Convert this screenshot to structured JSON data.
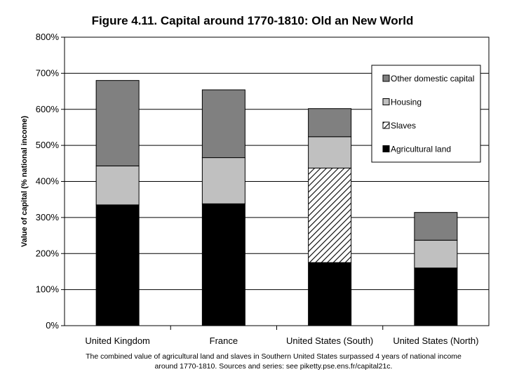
{
  "chart_data": {
    "type": "bar",
    "stacked": true,
    "title": "Figure 4.11. Capital around 1770-1810: Old an New World",
    "ylabel": "Value of capital (% national income)",
    "xlabel": "",
    "ylim": [
      0,
      800
    ],
    "yticks": [
      "0%",
      "100%",
      "200%",
      "300%",
      "400%",
      "500%",
      "600%",
      "700%",
      "800%"
    ],
    "y_tick_values": [
      0,
      100,
      200,
      300,
      400,
      500,
      600,
      700,
      800
    ],
    "categories": [
      "United Kingdom",
      "France",
      "United States (South)",
      "United States (North)"
    ],
    "series": [
      {
        "name": "Agricultural land",
        "values": [
          335,
          338,
          175,
          160
        ],
        "color": "#000000",
        "pattern": "solid"
      },
      {
        "name": "Slaves",
        "values": [
          0,
          0,
          262,
          0
        ],
        "color": "#ffffff",
        "pattern": "hatch"
      },
      {
        "name": "Housing",
        "values": [
          108,
          128,
          87,
          77
        ],
        "color": "#c0c0c0",
        "pattern": "solid"
      },
      {
        "name": "Other domestic capital",
        "values": [
          237,
          188,
          78,
          77
        ],
        "color": "#808080",
        "pattern": "solid"
      }
    ],
    "legend_order": [
      3,
      2,
      1,
      0
    ],
    "legend_position": "top-right",
    "grid": true
  },
  "footnote": "The combined value of agricultural land and slaves in Southern United States surpassed 4 years of national income around 1770-1810. Sources and series: see piketty.pse.ens.fr/capital21c."
}
